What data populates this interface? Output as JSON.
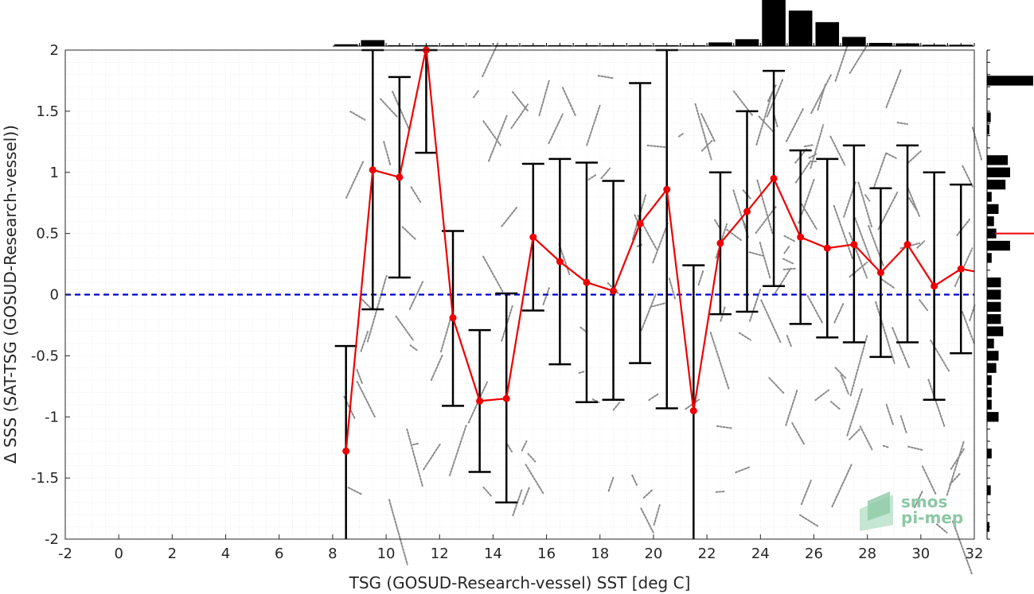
{
  "chart_data": {
    "type": "line",
    "xlabel": "TSG (GOSUD-Research-vessel) SST [deg C]",
    "ylabel": "Δ SSS (SAT-TSG (GOSUD-Research-vessel))",
    "xlim": [
      -2,
      32
    ],
    "ylim": [
      -2,
      2
    ],
    "x_ticks": [
      -2,
      0,
      2,
      4,
      6,
      8,
      10,
      12,
      14,
      16,
      18,
      20,
      22,
      24,
      26,
      28,
      30,
      32
    ],
    "y_ticks": [
      -2,
      -1.5,
      -1,
      -0.5,
      0,
      0.5,
      1,
      1.5,
      2
    ],
    "grid": true,
    "reference_line": {
      "y": 0,
      "style": "dashed",
      "color": "#0000cc"
    },
    "series": [
      {
        "type": "line_errorbar",
        "color": "#ee0000",
        "x": [
          8.5,
          9.5,
          10.5,
          11.5,
          12.5,
          13.5,
          14.5,
          15.5,
          16.5,
          17.5,
          18.5,
          19.5,
          20.5,
          21.5,
          22.5,
          23.5,
          24.5,
          25.5,
          26.5,
          27.5,
          28.5,
          29.5,
          30.5,
          31.5,
          32.0
        ],
        "y": [
          -1.28,
          1.02,
          0.96,
          2.05,
          -0.19,
          -0.87,
          -0.85,
          0.47,
          0.27,
          0.1,
          0.03,
          0.58,
          0.86,
          -0.95,
          0.42,
          0.68,
          0.95,
          0.47,
          0.38,
          0.41,
          0.18,
          0.41,
          0.07,
          0.21,
          0.19
        ],
        "err_low": [
          -2.0,
          -0.12,
          0.14,
          1.16,
          -0.91,
          -1.45,
          -1.7,
          -0.13,
          -0.57,
          -0.88,
          -0.86,
          -0.56,
          -0.93,
          -2.0,
          -0.16,
          -0.14,
          0.07,
          -0.24,
          -0.35,
          -0.39,
          -0.51,
          -0.39,
          -0.86,
          -0.48,
          null
        ],
        "err_high": [
          -0.42,
          2.0,
          1.78,
          2.0,
          0.52,
          -0.29,
          0.01,
          1.07,
          1.11,
          1.08,
          0.93,
          1.73,
          2.0,
          0.24,
          1.0,
          1.5,
          1.83,
          1.18,
          1.11,
          1.22,
          0.87,
          1.22,
          1.0,
          0.9,
          null
        ]
      }
    ],
    "top_histogram": {
      "bin_centers": [
        -1.5,
        -0.5,
        0.5,
        1.5,
        2.5,
        3.5,
        4.5,
        5.5,
        6.5,
        7.5,
        8.5,
        9.5,
        10.5,
        11.5,
        12.5,
        13.5,
        14.5,
        15.5,
        16.5,
        17.5,
        18.5,
        19.5,
        20.5,
        21.5,
        22.5,
        23.5,
        24.5,
        25.5,
        26.5,
        27.5,
        28.5,
        29.5,
        30.5,
        31.5
      ],
      "counts": [
        0,
        0,
        0,
        0,
        0,
        0,
        0,
        0,
        0,
        0,
        0.04,
        0.13,
        0.02,
        0.02,
        0.02,
        0.02,
        0.02,
        0.02,
        0.02,
        0.02,
        0.02,
        0.02,
        0.02,
        0.02,
        0.08,
        0.15,
        1.0,
        0.77,
        0.52,
        0.2,
        0.07,
        0.06,
        0.03,
        0.03
      ]
    },
    "right_histogram": {
      "bin_centers": [
        1.75,
        1.45,
        1.35,
        1.1,
        1.0,
        0.9,
        0.8,
        0.7,
        0.6,
        0.5,
        0.4,
        0.3,
        0.1,
        0.0,
        -0.1,
        -0.2,
        -0.3,
        -0.4,
        -0.5,
        -0.6,
        -0.7,
        -0.8,
        -0.9,
        -1.0,
        -1.3,
        -1.6,
        -1.9
      ],
      "counts": [
        1.0,
        0.08,
        0.05,
        0.45,
        0.5,
        0.4,
        0.1,
        0.25,
        0.15,
        0.2,
        0.5,
        0.1,
        0.3,
        0.3,
        0.3,
        0.3,
        0.35,
        0.15,
        0.25,
        0.2,
        0.1,
        0.1,
        0.1,
        0.25,
        0.1,
        0.08,
        0.05
      ]
    }
  },
  "logo": {
    "line1": "smos",
    "line2": "pi-mep"
  }
}
